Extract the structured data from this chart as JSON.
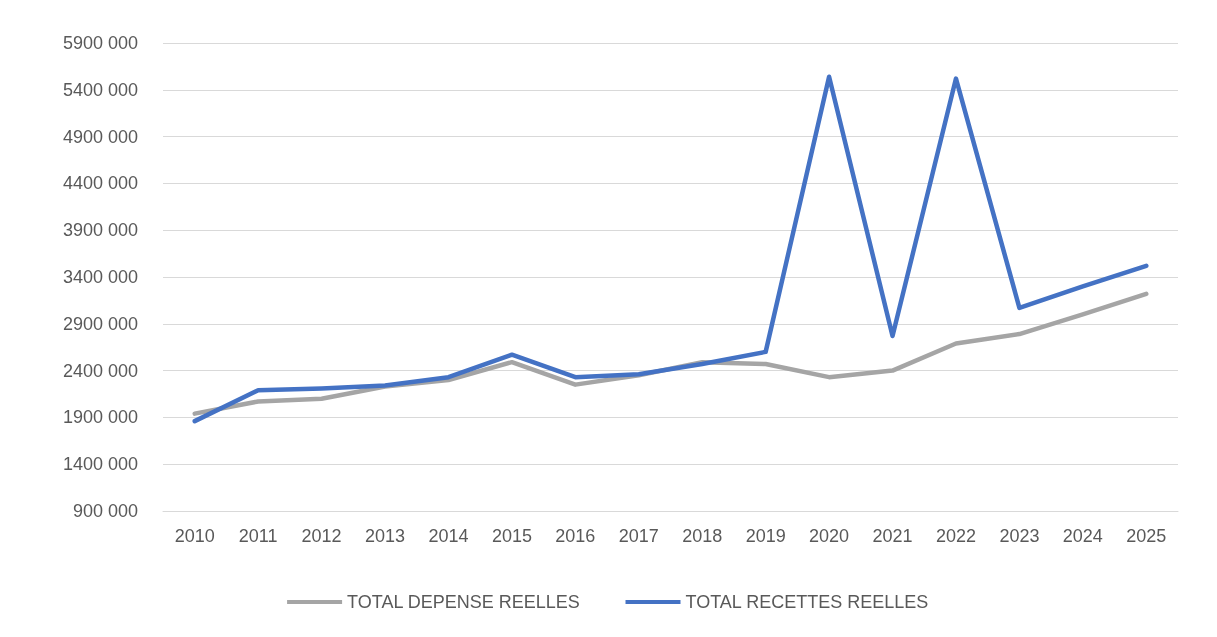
{
  "chart_data": {
    "type": "line",
    "categories": [
      "2010",
      "2011",
      "2012",
      "2013",
      "2014",
      "2015",
      "2016",
      "2017",
      "2018",
      "2019",
      "2020",
      "2021",
      "2022",
      "2023",
      "2024",
      "2025"
    ],
    "series": [
      {
        "name": "TOTAL DEPENSE REELLES",
        "color": "#a5a5a5",
        "values": [
          1940000,
          2070000,
          2100000,
          2230000,
          2300000,
          2490000,
          2250000,
          2350000,
          2490000,
          2470000,
          2330000,
          2400000,
          2690000,
          2790000,
          3000000,
          3220000
        ]
      },
      {
        "name": "TOTAL RECETTES REELLES",
        "color": "#4472c4",
        "values": [
          1860000,
          2190000,
          2210000,
          2240000,
          2330000,
          2570000,
          2330000,
          2360000,
          2470000,
          2600000,
          5540000,
          2770000,
          5520000,
          3070000,
          3300000,
          3520000
        ]
      }
    ],
    "ylim": [
      900000,
      5900000
    ],
    "yticks": [
      {
        "value": 900000,
        "label": "900 000"
      },
      {
        "value": 1400000,
        "label": "1400 000"
      },
      {
        "value": 1900000,
        "label": "1900 000"
      },
      {
        "value": 2400000,
        "label": "2400 000"
      },
      {
        "value": 2900000,
        "label": "2900 000"
      },
      {
        "value": 3400000,
        "label": "3400 000"
      },
      {
        "value": 3900000,
        "label": "3900 000"
      },
      {
        "value": 4400000,
        "label": "4400 000"
      },
      {
        "value": 4900000,
        "label": "4900 000"
      },
      {
        "value": 5400000,
        "label": "5400 000"
      },
      {
        "value": 5900000,
        "label": "5900 000"
      }
    ],
    "grid": "y",
    "legend": "bottom",
    "marker": "none",
    "line_style": "solid"
  }
}
